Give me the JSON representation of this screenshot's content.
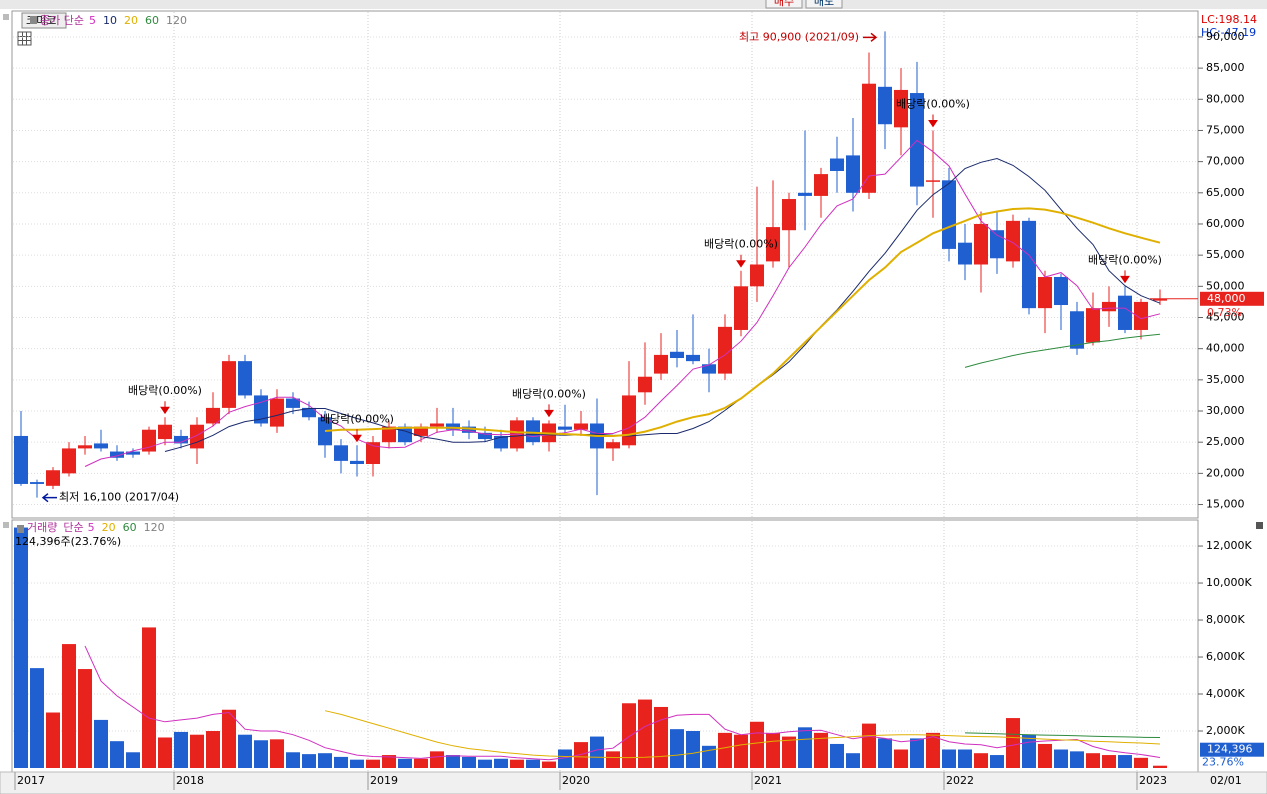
{
  "chart_data": {
    "type": "candlestick",
    "name": "코미코",
    "ma_label": "종가 단순",
    "lc_label": "LC:198.14",
    "hc_label": "HC:-47.19",
    "up_color": "#e8231e",
    "down_color": "#1f5fd0",
    "open": [
      26000,
      18600,
      18000,
      20000,
      24000,
      24800,
      23500,
      23500,
      23500,
      25500,
      26000,
      24000,
      28000,
      30500,
      38000,
      32500,
      27500,
      32000,
      30500,
      29000,
      24500,
      22000,
      21500,
      25000,
      27500,
      26000,
      27500,
      28000,
      27500,
      26500,
      26000,
      24000,
      28500,
      25000,
      27500,
      27000,
      28000,
      24000,
      24500,
      33000,
      36000,
      39500,
      39000,
      37500,
      36000,
      43000,
      50000,
      54000,
      59000,
      65000,
      64500,
      70500,
      71000,
      65000,
      82000,
      75500,
      81000,
      67000,
      67000,
      57000,
      53500,
      59000,
      54000,
      60500,
      46500,
      51500,
      46000,
      41000,
      46000,
      48500,
      43000,
      47700
    ],
    "high": [
      30000,
      19000,
      21000,
      25000,
      26000,
      27000,
      24500,
      24000,
      27500,
      29000,
      27000,
      29000,
      33000,
      39000,
      39000,
      33500,
      33500,
      33000,
      31500,
      30000,
      25500,
      24500,
      26000,
      28500,
      28000,
      28000,
      30500,
      30500,
      28500,
      27500,
      27000,
      29000,
      29000,
      28500,
      31000,
      30000,
      32000,
      25500,
      38000,
      41000,
      42500,
      43000,
      45500,
      40000,
      45500,
      52500,
      66000,
      67000,
      65000,
      75000,
      69000,
      74000,
      77000,
      87500,
      90900,
      85000,
      86000,
      75000,
      69000,
      60000,
      62000,
      62000,
      61500,
      61000,
      52500,
      52000,
      47500,
      49000,
      50000,
      50000,
      48000,
      49500
    ],
    "low": [
      18000,
      16100,
      17500,
      19500,
      23000,
      23500,
      22000,
      22500,
      23000,
      24500,
      24000,
      21500,
      27500,
      29500,
      32000,
      27500,
      26500,
      29500,
      28500,
      22500,
      20000,
      19500,
      19500,
      24000,
      24500,
      25000,
      26500,
      26000,
      25500,
      25000,
      23500,
      23500,
      24500,
      23500,
      26500,
      26000,
      16500,
      22000,
      24000,
      31000,
      35000,
      37000,
      37500,
      33000,
      35000,
      42000,
      47500,
      53000,
      53000,
      59000,
      61000,
      65000,
      62000,
      64000,
      72000,
      71000,
      63000,
      61000,
      54000,
      51000,
      49000,
      52000,
      53000,
      45500,
      42500,
      43000,
      39000,
      40500,
      43500,
      42500,
      41500,
      47000
    ],
    "close": [
      18300,
      18300,
      20500,
      24000,
      24500,
      24000,
      22500,
      23000,
      27000,
      27800,
      24800,
      27800,
      30500,
      38000,
      32500,
      28000,
      32000,
      30500,
      29000,
      24500,
      22000,
      21500,
      25000,
      27500,
      25000,
      27500,
      28000,
      27000,
      26500,
      25500,
      24000,
      28500,
      25000,
      28000,
      27000,
      28000,
      24000,
      25000,
      32500,
      35500,
      39000,
      38500,
      38000,
      36000,
      43500,
      50000,
      53500,
      59500,
      64000,
      64500,
      68000,
      68500,
      65000,
      82500,
      76000,
      81500,
      66000,
      67000,
      56000,
      53500,
      60000,
      54500,
      60500,
      46500,
      51500,
      47000,
      40000,
      46500,
      47500,
      43000,
      47500,
      48000
    ],
    "ma": [
      {
        "name": "5",
        "color": "#d030c0",
        "values": [
          null,
          null,
          null,
          null,
          21100,
          22300,
          22800,
          23600,
          24200,
          25000,
          25000,
          26100,
          27600,
          29800,
          30700,
          31400,
          32200,
          32200,
          30900,
          28800,
          27600,
          25500,
          24400,
          24100,
          24200,
          25400,
          26600,
          27000,
          26800,
          26300,
          26200,
          26300,
          25900,
          26200,
          26500,
          27100,
          26400,
          26400,
          27300,
          29000,
          31600,
          34100,
          36700,
          37400,
          39000,
          41200,
          44200,
          48500,
          53000,
          56300,
          59900,
          62900,
          64000,
          67700,
          68000,
          70700,
          73400,
          71600,
          69300,
          64800,
          60500,
          58200,
          57000,
          55000,
          51500,
          52200,
          50100,
          46300,
          46500,
          46500,
          44800,
          45600
        ]
      },
      {
        "name": "10",
        "color": "#1a2a6c",
        "values": [
          null,
          null,
          null,
          null,
          null,
          null,
          null,
          null,
          null,
          23500,
          24200,
          25000,
          26100,
          27500,
          28300,
          28700,
          29300,
          30000,
          30400,
          30400,
          29600,
          28800,
          28100,
          27300,
          26800,
          25900,
          25500,
          25000,
          25000,
          25100,
          25800,
          26000,
          26300,
          26200,
          26100,
          26200,
          26300,
          26100,
          26000,
          26200,
          26400,
          26400,
          27200,
          28300,
          30100,
          32000,
          34000,
          35800,
          37900,
          40600,
          43600,
          46200,
          49200,
          52400,
          55300,
          58700,
          62200,
          64700,
          66500,
          68900,
          69900,
          70500,
          69400,
          67600,
          65400,
          62300,
          59300,
          56700,
          52500,
          50100,
          48500,
          47300
        ]
      },
      {
        "name": "20",
        "color": "#e0b000",
        "values": [
          null,
          null,
          null,
          null,
          null,
          null,
          null,
          null,
          null,
          null,
          null,
          null,
          null,
          null,
          null,
          null,
          null,
          null,
          null,
          26800,
          27000,
          27000,
          27100,
          27200,
          27300,
          27300,
          27300,
          27300,
          27200,
          27000,
          26800,
          26600,
          26500,
          26400,
          26300,
          26200,
          26000,
          26000,
          26200,
          26700,
          27400,
          28300,
          29000,
          29500,
          30500,
          32000,
          34000,
          36000,
          38500,
          41000,
          43500,
          46000,
          48500,
          51000,
          53000,
          55500,
          57000,
          58500,
          59500,
          60500,
          61500,
          62000,
          62400,
          62500,
          62300,
          61800,
          61000,
          60200,
          59300,
          58500,
          57800,
          57000
        ]
      },
      {
        "name": "60",
        "color": "#2e8b3e",
        "values": [
          null,
          null,
          null,
          null,
          null,
          null,
          null,
          null,
          null,
          null,
          null,
          null,
          null,
          null,
          null,
          null,
          null,
          null,
          null,
          null,
          null,
          null,
          null,
          null,
          null,
          null,
          null,
          null,
          null,
          null,
          null,
          null,
          null,
          null,
          null,
          null,
          null,
          null,
          null,
          null,
          null,
          null,
          null,
          null,
          null,
          null,
          null,
          null,
          null,
          null,
          null,
          null,
          null,
          null,
          null,
          null,
          null,
          null,
          null,
          37000,
          37700,
          38300,
          38900,
          39400,
          39800,
          40200,
          40600,
          41000,
          41300,
          41700,
          42000,
          42300
        ]
      },
      {
        "name": "120",
        "color": "#808080"
      }
    ],
    "ylim": [
      13000,
      94000
    ],
    "yticks": [
      {
        "value": 15000,
        "label": "15,000"
      },
      {
        "value": 20000,
        "label": "20,000"
      },
      {
        "value": 25000,
        "label": "25,000"
      },
      {
        "value": 30000,
        "label": "30,000"
      },
      {
        "value": 35000,
        "label": "35,000"
      },
      {
        "value": 40000,
        "label": "40,000"
      },
      {
        "value": 45000,
        "label": "45,000"
      },
      {
        "value": 50000,
        "label": "50,000"
      },
      {
        "value": 55000,
        "label": "55,000"
      },
      {
        "value": 60000,
        "label": "60,000"
      },
      {
        "value": 65000,
        "label": "65,000"
      },
      {
        "value": 70000,
        "label": "70,000"
      },
      {
        "value": 75000,
        "label": "75,000"
      },
      {
        "value": 80000,
        "label": "80,000"
      },
      {
        "value": 85000,
        "label": "85,000"
      },
      {
        "value": 90000,
        "label": "90,000"
      }
    ],
    "last_price": {
      "value": 48000,
      "label": "48,000"
    },
    "change_label": "0.73%",
    "max_label": "최고 90,900 (2021/09)",
    "min_label": "최저 16,100 (2017/04)",
    "dividend_labels": [
      "배당락(0.00%)",
      "배당락(0.00%)",
      "배당락(0.00%)",
      "배당락(0.00%)",
      "배당락(0.00%)",
      "배당락(0.00%)"
    ],
    "volume_name": "거래량",
    "volume_ma_label": "단순",
    "volume": [
      13000,
      5400,
      3000,
      6700,
      5350,
      2600,
      1450,
      850,
      7600,
      1650,
      1950,
      1800,
      2000,
      3150,
      1800,
      1500,
      1550,
      850,
      750,
      800,
      600,
      450,
      450,
      700,
      500,
      500,
      900,
      700,
      600,
      450,
      500,
      450,
      450,
      350,
      1000,
      1400,
      1700,
      900,
      3500,
      3700,
      3300,
      2100,
      2000,
      1200,
      1900,
      1800,
      2500,
      1900,
      1700,
      2200,
      1900,
      1300,
      800,
      2400,
      1600,
      1000,
      1600,
      1900,
      1000,
      1000,
      800,
      700,
      2700,
      1800,
      1300,
      1000,
      900,
      800,
      700,
      700,
      550,
      124.396
    ],
    "volume_ma": [
      {
        "name": "5",
        "color": "#d030c0",
        "values": [
          null,
          null,
          null,
          null,
          6600,
          4700,
          3900,
          3300,
          2700,
          2500,
          2600,
          2700,
          2900,
          3000,
          2100,
          2000,
          2000,
          1800,
          1500,
          1100,
          900,
          700,
          620,
          600,
          560,
          520,
          610,
          660,
          640,
          640,
          630,
          550,
          500,
          450,
          550,
          730,
          980,
          1070,
          1700,
          2250,
          2600,
          2850,
          2900,
          2900,
          2100,
          1800,
          1900,
          1860,
          1960,
          2020,
          2040,
          1800,
          1580,
          1720,
          1600,
          1420,
          1500,
          1700,
          1420,
          1300,
          1260,
          1100,
          1240,
          1400,
          1460,
          1500,
          1540,
          1160,
          940,
          820,
          730,
          570
        ]
      },
      {
        "name": "20",
        "color": "#e0b000",
        "values": [
          null,
          null,
          null,
          null,
          null,
          null,
          null,
          null,
          null,
          null,
          null,
          null,
          null,
          null,
          null,
          null,
          null,
          null,
          null,
          3100,
          2900,
          2650,
          2400,
          2150,
          1900,
          1650,
          1400,
          1200,
          1050,
          950,
          850,
          780,
          700,
          650,
          620,
          600,
          580,
          570,
          560,
          580,
          620,
          700,
          800,
          950,
          1100,
          1250,
          1350,
          1450,
          1500,
          1550,
          1600,
          1650,
          1700,
          1750,
          1780,
          1800,
          1800,
          1780,
          1750,
          1720,
          1700,
          1680,
          1650,
          1600,
          1560,
          1520,
          1500,
          1450,
          1420,
          1380,
          1350,
          1300
        ]
      },
      {
        "name": "60",
        "color": "#2e8b3e",
        "values": [
          null,
          null,
          null,
          null,
          null,
          null,
          null,
          null,
          null,
          null,
          null,
          null,
          null,
          null,
          null,
          null,
          null,
          null,
          null,
          null,
          null,
          null,
          null,
          null,
          null,
          null,
          null,
          null,
          null,
          null,
          null,
          null,
          null,
          null,
          null,
          null,
          null,
          null,
          null,
          null,
          null,
          null,
          null,
          null,
          null,
          null,
          null,
          null,
          null,
          null,
          null,
          null,
          null,
          null,
          null,
          null,
          null,
          null,
          null,
          1900,
          1880,
          1850,
          1820,
          1800,
          1780,
          1760,
          1740,
          1720,
          1700,
          1680,
          1660,
          1650
        ]
      },
      {
        "name": "120",
        "color": "#808080"
      }
    ],
    "volume_caption": "124,396주(23.76%)",
    "last_volume": {
      "value": 124.396,
      "label": "124,396"
    },
    "volume_pct_label": "23.76%",
    "vlim": [
      0,
      13300
    ],
    "vticks": [
      {
        "value": 2000,
        "label": "2,000K"
      },
      {
        "value": 4000,
        "label": "4,000K"
      },
      {
        "value": 6000,
        "label": "6,000K"
      },
      {
        "value": 8000,
        "label": "8,000K"
      },
      {
        "value": 10000,
        "label": "10,000K"
      },
      {
        "value": 12000,
        "label": "12,000K"
      }
    ],
    "xticks": [
      "2017",
      "2018",
      "2019",
      "2020",
      "2021",
      "2022",
      "2023"
    ],
    "x_end_label": "02/01",
    "buttons": [
      "매수",
      "매도"
    ]
  }
}
